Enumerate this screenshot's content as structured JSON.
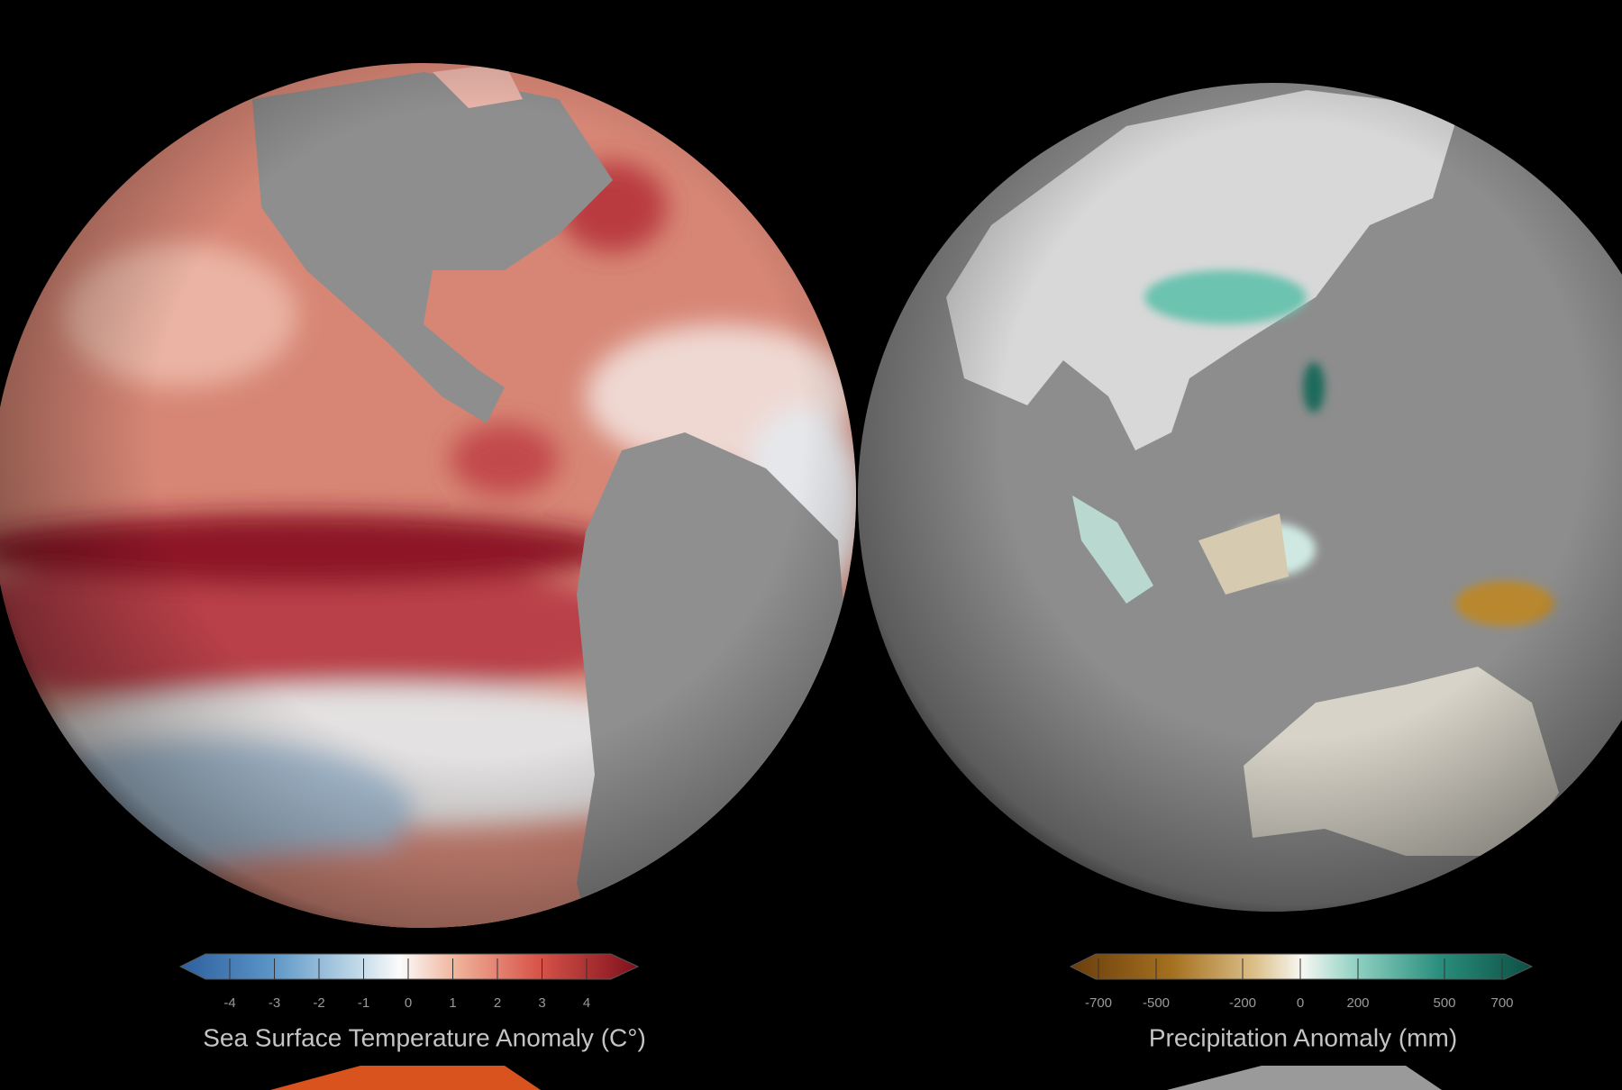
{
  "legends": [
    {
      "title": "Sea Surface Temperature Anomaly (C°)",
      "ticks": [
        -4,
        -3,
        -2,
        -1,
        0,
        1,
        2,
        3,
        4
      ]
    },
    {
      "title": "Precipitation Anomaly (mm)",
      "ticks": [
        -700,
        -500,
        -200,
        0,
        200,
        500,
        700
      ]
    }
  ]
}
